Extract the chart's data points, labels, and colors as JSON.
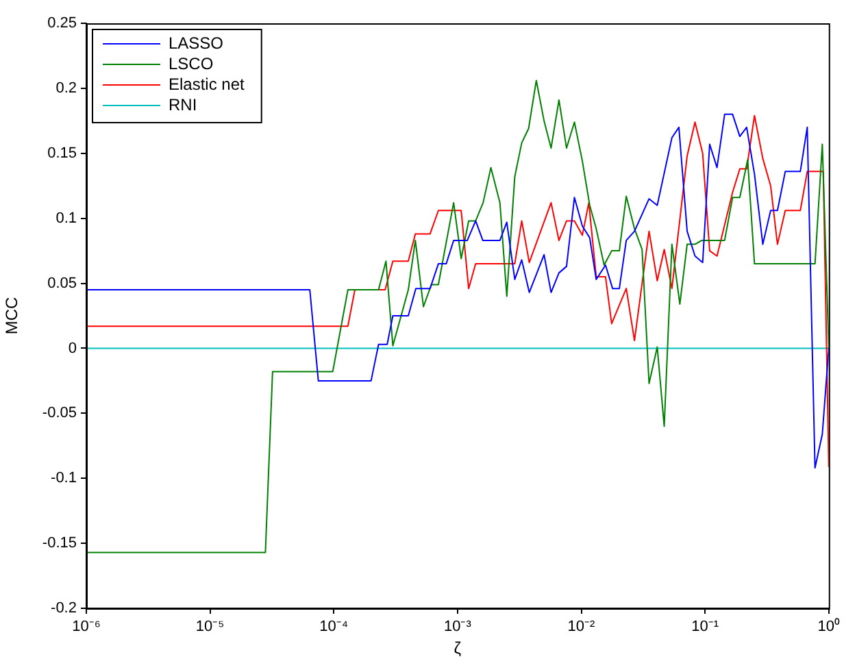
{
  "chart_data": {
    "type": "line",
    "xlabel": "ζ",
    "ylabel": "MCC",
    "log": "x",
    "grid": false,
    "legend": "top left",
    "marker": "none",
    "line_style": "solid",
    "xlim": [
      1e-06,
      1
    ],
    "xticks": [
      {
        "value": 1e-06,
        "label": "10⁻⁶"
      },
      {
        "value": 1e-05,
        "label": "10⁻⁵"
      },
      {
        "value": 0.0001,
        "label": "10⁻⁴"
      },
      {
        "value": 0.001,
        "label": "10⁻³"
      },
      {
        "value": 0.01,
        "label": "10⁻²"
      },
      {
        "value": 0.1,
        "label": "10⁻¹"
      },
      {
        "value": 1,
        "label": "10⁰"
      }
    ],
    "ylim": [
      -0.2,
      0.25
    ],
    "yticks": [
      -0.2,
      -0.15,
      -0.1,
      -0.05,
      0,
      0.05,
      0.1,
      0.15,
      0.2,
      0.25
    ],
    "series": [
      {
        "name": "LASSO",
        "color": "#0000ff",
        "x": [
          1e-06,
          6.4e-05,
          7.5e-05,
          0.0002,
          0.00023,
          0.00027,
          0.0003,
          0.0004,
          0.00046,
          0.0006,
          0.0007,
          0.00081,
          0.00093,
          0.0012,
          0.0014,
          0.0016,
          0.0022,
          0.0025,
          0.0029,
          0.0033,
          0.0038,
          0.005,
          0.0057,
          0.0066,
          0.0076,
          0.0088,
          0.0102,
          0.0117,
          0.0132,
          0.0157,
          0.0179,
          0.0203,
          0.0231,
          0.0269,
          0.0353,
          0.0411,
          0.054,
          0.0615,
          0.0717,
          0.083,
          0.0957,
          0.109,
          0.125,
          0.144,
          0.167,
          0.191,
          0.217,
          0.251,
          0.293,
          0.339,
          0.385,
          0.445,
          0.589,
          0.67,
          0.774,
          0.887,
          1
        ],
        "values": [
          0.045,
          0.045,
          -0.025,
          -0.025,
          0.003,
          0.003,
          0.025,
          0.025,
          0.046,
          0.046,
          0.065,
          0.065,
          0.083,
          0.083,
          0.098,
          0.083,
          0.083,
          0.097,
          0.053,
          0.068,
          0.043,
          0.072,
          0.043,
          0.058,
          0.063,
          0.116,
          0.094,
          0.085,
          0.053,
          0.064,
          0.046,
          0.046,
          0.083,
          0.09,
          0.115,
          0.11,
          0.162,
          0.17,
          0.09,
          0.071,
          0.066,
          0.157,
          0.139,
          0.18,
          0.18,
          0.163,
          0.17,
          0.134,
          0.08,
          0.106,
          0.106,
          0.136,
          0.136,
          0.17,
          -0.092,
          -0.066,
          0
        ]
      },
      {
        "name": "LSCO",
        "color": "#008000",
        "x": [
          1e-06,
          2.8e-05,
          3.2e-05,
          9.8e-05,
          0.00013,
          0.00023,
          0.000264,
          0.0003,
          0.0004,
          0.000456,
          0.00053,
          0.000615,
          0.0007,
          0.00093,
          0.00107,
          0.00123,
          0.0014,
          0.00161,
          0.00186,
          0.0022,
          0.0025,
          0.0029,
          0.0033,
          0.00375,
          0.00433,
          0.005,
          0.0057,
          0.0066,
          0.0076,
          0.0088,
          0.0102,
          0.0117,
          0.0132,
          0.0153,
          0.0176,
          0.0203,
          0.0231,
          0.0269,
          0.031,
          0.0353,
          0.0411,
          0.0468,
          0.054,
          0.0626,
          0.0717,
          0.083,
          0.0942,
          0.144,
          0.167,
          0.191,
          0.221,
          0.251,
          0.774,
          0.887,
          1
        ],
        "values": [
          -0.157,
          -0.157,
          -0.018,
          -0.018,
          0.045,
          0.045,
          0.067,
          0.002,
          0.045,
          0.083,
          0.032,
          0.049,
          0.049,
          0.112,
          0.069,
          0.098,
          0.098,
          0.112,
          0.139,
          0.112,
          0.04,
          0.132,
          0.158,
          0.169,
          0.206,
          0.175,
          0.154,
          0.191,
          0.154,
          0.174,
          0.144,
          0.11,
          0.092,
          0.064,
          0.075,
          0.075,
          0.117,
          0.092,
          0.076,
          -0.027,
          0.001,
          -0.06,
          0.08,
          0.034,
          0.08,
          0.08,
          0.083,
          0.083,
          0.116,
          0.116,
          0.145,
          0.065,
          0.065,
          0.157,
          0
        ]
      },
      {
        "name": "Elastic net",
        "color": "#ff0000",
        "x": [
          1e-06,
          0.00013,
          0.000148,
          0.00026,
          0.0003,
          0.0004,
          0.000456,
          0.0006,
          0.0007,
          0.00107,
          0.00123,
          0.0014,
          0.0029,
          0.0033,
          0.0038,
          0.0057,
          0.0066,
          0.0076,
          0.0088,
          0.0102,
          0.0115,
          0.0132,
          0.0157,
          0.0176,
          0.0231,
          0.0269,
          0.0353,
          0.0411,
          0.0468,
          0.054,
          0.0717,
          0.083,
          0.0957,
          0.109,
          0.125,
          0.167,
          0.191,
          0.217,
          0.251,
          0.293,
          0.339,
          0.385,
          0.445,
          0.589,
          0.67,
          0.903,
          1
        ],
        "values": [
          0.017,
          0.017,
          0.045,
          0.045,
          0.067,
          0.067,
          0.088,
          0.088,
          0.106,
          0.106,
          0.046,
          0.065,
          0.065,
          0.098,
          0.066,
          0.112,
          0.083,
          0.098,
          0.098,
          0.087,
          0.112,
          0.055,
          0.055,
          0.019,
          0.046,
          0.006,
          0.09,
          0.052,
          0.076,
          0.046,
          0.148,
          0.174,
          0.15,
          0.075,
          0.071,
          0.12,
          0.138,
          0.138,
          0.179,
          0.146,
          0.125,
          0.08,
          0.106,
          0.106,
          0.136,
          0.136,
          -0.091
        ]
      },
      {
        "name": "RNI",
        "color": "#00bfbf",
        "x": [
          1e-06,
          1
        ],
        "values": [
          0,
          0
        ]
      }
    ]
  }
}
